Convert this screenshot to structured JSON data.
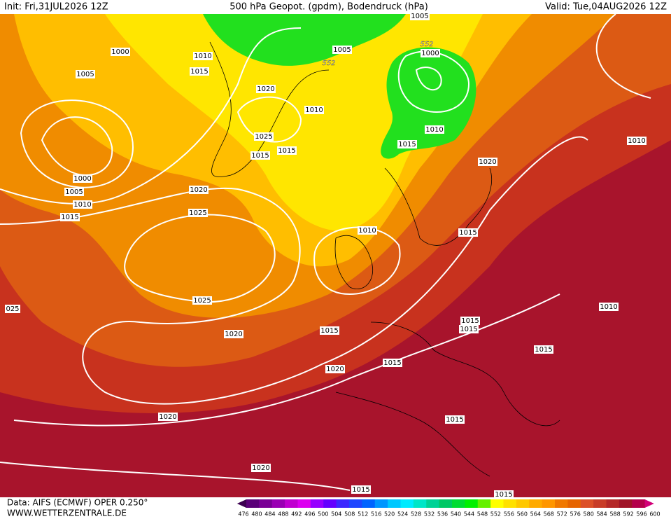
{
  "header": {
    "init": "Init: Fri,31JUL2026 12Z",
    "title": "500 hPa Geopot. (gpdm), Bodendruck (hPa)",
    "valid": "Valid: Tue,04AUG2026 12Z"
  },
  "map": {
    "isobar_labels": [
      "1000",
      "1010",
      "1005",
      "1015",
      "1020",
      "1010",
      "1025",
      "1015",
      "1015",
      "1000",
      "1005",
      "1010",
      "1015",
      "1020",
      "1025",
      "1010",
      "1025",
      "1020",
      "1015",
      "1020",
      "1015",
      "1020",
      "1020",
      "1015",
      "1015",
      "1015",
      "1015",
      "1015",
      "1015",
      "1010",
      "1015",
      "1020",
      "1010",
      "1010",
      "1015",
      "1000",
      "1005",
      "1005",
      "025"
    ],
    "height_labels": [
      "552",
      "552"
    ]
  },
  "colorbar": {
    "labels": [
      "476",
      "480",
      "484",
      "488",
      "492",
      "496",
      "500",
      "504",
      "508",
      "512",
      "516",
      "520",
      "524",
      "528",
      "532",
      "536",
      "540",
      "544",
      "548",
      "552",
      "556",
      "560",
      "564",
      "568",
      "572",
      "576",
      "580",
      "584",
      "588",
      "592",
      "596",
      "600"
    ]
  },
  "footer": {
    "source": "Data: AIFS (ECMWF) OPER 0.250°",
    "website": "WWW.WETTERZENTRALE.DE"
  }
}
